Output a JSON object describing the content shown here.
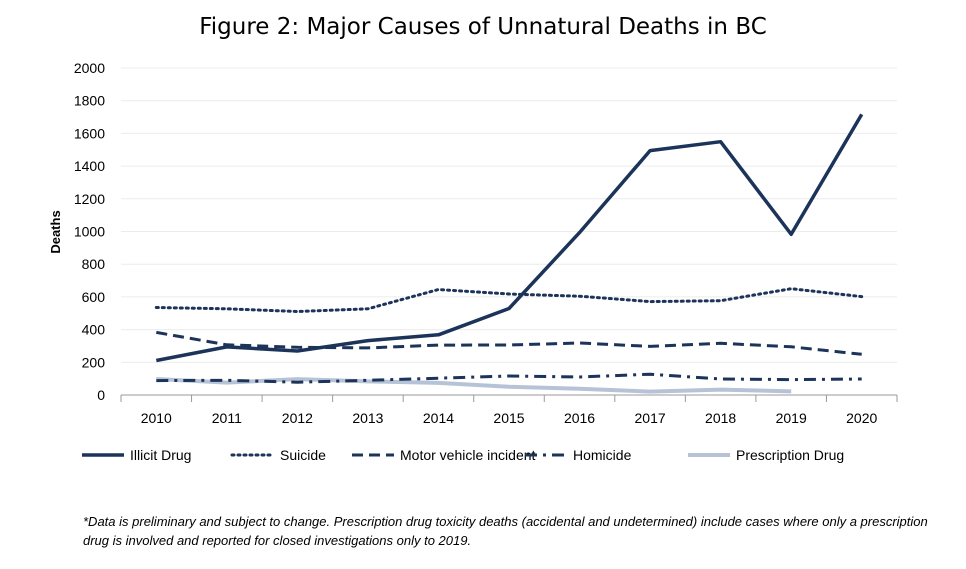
{
  "chart_data": {
    "type": "line",
    "title": "Figure 2: Major Causes of Unnatural Deaths in BC",
    "xlabel": "",
    "ylabel": "Deaths",
    "ylim": [
      0,
      2000
    ],
    "yticks": [
      0,
      200,
      400,
      600,
      800,
      1000,
      1200,
      1400,
      1600,
      1800,
      2000
    ],
    "x": [
      "2010",
      "2011",
      "2012",
      "2013",
      "2014",
      "2015",
      "2016",
      "2017",
      "2018",
      "2019",
      "2020"
    ],
    "grid": true,
    "legend_position": "bottom",
    "series": [
      {
        "name": "Illicit Drug",
        "color": "#1c3459",
        "style": "solid",
        "values": [
          211,
          294,
          269,
          333,
          368,
          529,
          993,
          1495,
          1549,
          983,
          1716
        ]
      },
      {
        "name": "Suicide",
        "color": "#1c3459",
        "style": "dotted",
        "values": [
          535,
          527,
          511,
          527,
          645,
          618,
          604,
          571,
          577,
          650,
          602
        ]
      },
      {
        "name": "Motor vehicle incident",
        "color": "#1c3459",
        "style": "dashed",
        "values": [
          383,
          307,
          292,
          288,
          305,
          306,
          318,
          297,
          316,
          295,
          249
        ]
      },
      {
        "name": "Homicide",
        "color": "#1c3459",
        "style": "dashdot",
        "values": [
          88,
          90,
          78,
          90,
          103,
          116,
          110,
          127,
          98,
          94,
          98
        ]
      },
      {
        "name": "Prescription Drug",
        "color": "#b6c3d6",
        "style": "solid",
        "values": [
          98,
          76,
          97,
          83,
          74,
          51,
          38,
          21,
          33,
          22,
          null
        ]
      }
    ]
  },
  "footnote": "*Data is preliminary and subject to change. Prescription drug toxicity deaths (accidental and undetermined) include cases where only a prescription drug is involved and reported for closed investigations only to 2019."
}
